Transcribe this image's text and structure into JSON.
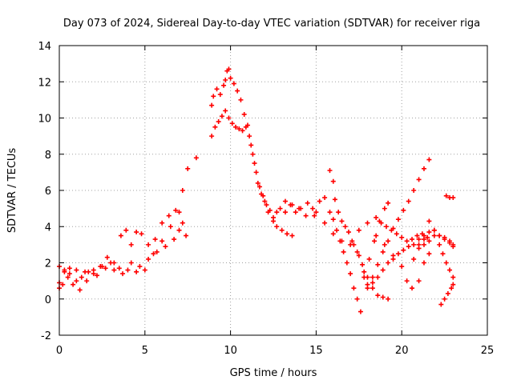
{
  "chart_data": {
    "type": "scatter",
    "title": "Day 073 of 2024, Sidereal Day-to-day VTEC variation (SDTVAR) for receiver riga",
    "xlabel": "GPS time / hours",
    "ylabel": "SDTVAR / TECUs",
    "xlim": [
      0,
      25
    ],
    "ylim": [
      -2,
      14
    ],
    "xticks": [
      0,
      5,
      10,
      15,
      20,
      25
    ],
    "yticks": [
      -2,
      0,
      2,
      4,
      6,
      8,
      10,
      12,
      14
    ],
    "grid": true,
    "marker": "plus",
    "marker_color": "#ff0000",
    "series": [
      {
        "x": [
          0.0,
          0.3,
          0.6,
          1.0,
          1.5,
          2.0,
          2.5,
          3.0,
          3.5,
          4.0,
          4.5,
          5.0,
          5.5,
          6.0,
          6.5,
          7.0,
          7.2,
          7.5,
          8.0
        ],
        "y": [
          0.9,
          1.5,
          1.7,
          1.6,
          1.5,
          1.6,
          1.8,
          2.0,
          1.7,
          1.6,
          1.5,
          1.6,
          2.5,
          3.2,
          4.0,
          4.8,
          6.0,
          7.2,
          7.8
        ]
      },
      {
        "x": [
          0.0,
          0.2,
          0.5,
          0.8,
          1.2,
          1.6,
          2.0,
          2.4,
          2.8,
          3.2,
          3.6,
          3.9,
          4.2,
          4.5,
          4.8,
          5.2,
          5.6,
          6.0,
          6.4,
          6.8,
          7.2,
          7.4
        ],
        "y": [
          0.6,
          0.8,
          1.2,
          0.8,
          0.5,
          1.0,
          1.4,
          1.8,
          2.3,
          2.0,
          3.5,
          3.8,
          3.0,
          3.7,
          3.6,
          3.0,
          3.3,
          4.2,
          4.6,
          4.9,
          4.2,
          3.5
        ]
      },
      {
        "x": [
          0.0,
          0.3,
          0.6,
          1.0,
          1.3,
          1.7,
          2.2,
          2.7,
          3.2,
          3.7,
          4.2,
          4.7,
          5.2,
          5.7,
          6.2,
          6.7,
          7.0
        ],
        "y": [
          1.8,
          1.6,
          1.4,
          1.0,
          1.2,
          1.5,
          1.3,
          1.7,
          1.6,
          1.4,
          2.0,
          1.8,
          2.2,
          2.6,
          2.9,
          3.3,
          3.8
        ]
      },
      {
        "x": [
          8.9,
          9.0,
          9.2,
          9.4,
          9.6,
          9.7,
          9.8,
          9.9,
          10.0,
          10.2,
          10.4,
          10.6,
          10.8,
          11.0,
          11.2,
          11.4,
          11.6,
          11.8,
          12.0,
          12.2,
          12.5,
          12.7,
          13.0,
          13.3,
          13.6
        ],
        "y": [
          10.7,
          11.2,
          11.6,
          11.3,
          11.8,
          12.1,
          12.6,
          12.7,
          12.2,
          11.9,
          11.5,
          11.0,
          10.2,
          9.6,
          8.5,
          7.5,
          6.4,
          5.8,
          5.4,
          4.8,
          4.3,
          4.0,
          3.8,
          3.6,
          3.5
        ]
      },
      {
        "x": [
          8.9,
          9.1,
          9.3,
          9.5,
          9.7,
          9.9,
          10.1,
          10.3,
          10.5,
          10.7,
          10.9,
          11.1,
          11.3,
          11.5,
          11.7,
          11.9,
          12.1,
          12.3,
          12.5,
          12.7,
          12.9,
          13.2,
          13.5,
          13.8,
          14.1,
          14.5,
          14.9
        ],
        "y": [
          9.0,
          9.5,
          9.8,
          10.1,
          10.4,
          10.0,
          9.7,
          9.5,
          9.4,
          9.3,
          9.5,
          9.0,
          8.0,
          7.0,
          6.2,
          5.7,
          5.2,
          4.9,
          4.5,
          4.8,
          5.0,
          5.4,
          5.2,
          4.8,
          5.0,
          5.3,
          4.6
        ]
      },
      {
        "x": [
          13.2,
          13.6,
          14.0,
          14.4,
          14.8,
          15.2,
          15.5,
          15.8,
          16.0,
          16.2,
          16.4,
          16.6,
          16.8,
          17.0,
          17.2,
          17.4,
          17.6
        ],
        "y": [
          4.8,
          5.2,
          5.0,
          4.6,
          5.0,
          5.4,
          5.6,
          4.8,
          4.4,
          3.8,
          3.2,
          2.6,
          2.0,
          1.4,
          0.6,
          0.0,
          -0.7
        ]
      },
      {
        "x": [
          15.8,
          16.0,
          16.1,
          16.3,
          16.5,
          16.7,
          16.9,
          17.1,
          17.4,
          17.7,
          18.0,
          18.3,
          18.6,
          18.9,
          19.2
        ],
        "y": [
          7.1,
          6.5,
          5.5,
          4.8,
          4.3,
          4.0,
          3.7,
          3.2,
          2.6,
          1.9,
          1.2,
          0.6,
          0.2,
          0.1,
          0.0
        ]
      },
      {
        "x": [
          15.0,
          15.5,
          16.0,
          16.5,
          17.0,
          17.5,
          18.0,
          18.5,
          19.0,
          19.5,
          20.0,
          20.3,
          20.6,
          21.0,
          21.3,
          21.6
        ],
        "y": [
          4.8,
          4.2,
          3.6,
          3.2,
          3.0,
          3.8,
          4.2,
          3.5,
          3.0,
          2.4,
          1.8,
          1.0,
          0.6,
          1.0,
          2.0,
          2.5
        ]
      },
      {
        "x": [
          17.2,
          17.5,
          17.8,
          18.0,
          18.3,
          18.6,
          18.9,
          19.2,
          19.5,
          19.8,
          20.1,
          20.4,
          20.7,
          21.0,
          21.3,
          21.6
        ],
        "y": [
          3.0,
          2.4,
          1.5,
          0.8,
          1.2,
          1.9,
          2.6,
          3.2,
          3.9,
          4.4,
          4.9,
          5.4,
          6.0,
          6.6,
          7.2,
          7.7
        ]
      },
      {
        "x": [
          17.8,
          18.1,
          18.4,
          18.7,
          19.0,
          19.2
        ],
        "y": [
          1.2,
          2.2,
          3.2,
          4.3,
          5.0,
          5.3
        ]
      },
      {
        "x": [
          18.0,
          18.3,
          18.6,
          18.9,
          19.2,
          19.5,
          19.8,
          20.1,
          20.4,
          20.7,
          21.0,
          21.3,
          21.6,
          21.9,
          22.2,
          22.5,
          22.8,
          23.0
        ],
        "y": [
          0.6,
          0.9,
          1.2,
          1.6,
          2.0,
          2.2,
          2.5,
          2.7,
          2.9,
          3.0,
          3.3,
          3.5,
          3.7,
          3.8,
          3.5,
          3.4,
          3.2,
          3.0
        ]
      },
      {
        "x": [
          18.5,
          18.8,
          19.1,
          19.4,
          19.7,
          20.0,
          20.3,
          20.6,
          20.9,
          21.2,
          21.5
        ],
        "y": [
          4.5,
          4.2,
          4.0,
          3.8,
          3.6,
          3.4,
          3.2,
          3.3,
          3.5,
          3.6,
          3.4
        ]
      },
      {
        "x": [
          21.0,
          21.3,
          21.6,
          21.9,
          22.2,
          22.5,
          22.8,
          23.0
        ],
        "y": [
          3.0,
          3.3,
          4.3,
          3.8,
          3.5,
          3.3,
          3.1,
          2.9
        ]
      },
      {
        "x": [
          20.7,
          21.0,
          21.3,
          21.6,
          21.9,
          22.2,
          22.4,
          22.6,
          22.8,
          23.0
        ],
        "y": [
          2.2,
          2.8,
          3.0,
          3.2,
          3.5,
          3.0,
          2.5,
          2.0,
          1.6,
          1.2
        ]
      },
      {
        "x": [
          22.3,
          22.5,
          22.7,
          22.9,
          23.0
        ],
        "y": [
          -0.3,
          0.0,
          0.3,
          0.6,
          0.8
        ]
      },
      {
        "x": [
          22.6,
          22.8,
          23.0
        ],
        "y": [
          5.7,
          5.6,
          5.6
        ]
      }
    ]
  }
}
